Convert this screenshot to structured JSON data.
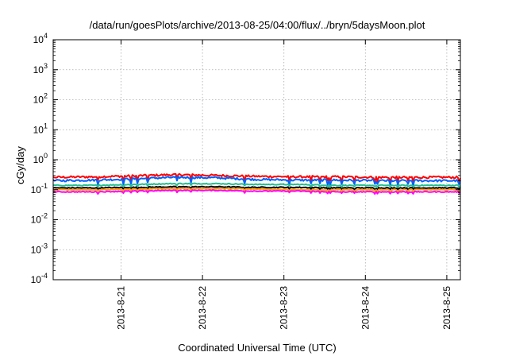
{
  "chart_data": {
    "type": "line",
    "title": "/data/run/goesPlots/archive/2013-08-25/04:00/flux/../bryn/5daysMoon.plot",
    "xlabel": "Coordinated Universal Time (UTC)",
    "ylabel": "cGy/day",
    "yscale": "log",
    "ylim": [
      0.0001,
      10000
    ],
    "yticks": [
      {
        "base": "10",
        "exp": "-4"
      },
      {
        "base": "10",
        "exp": "-3"
      },
      {
        "base": "10",
        "exp": "-2"
      },
      {
        "base": "10",
        "exp": "-1"
      },
      {
        "base": "10",
        "exp": "0"
      },
      {
        "base": "10",
        "exp": "1"
      },
      {
        "base": "10",
        "exp": "2"
      },
      {
        "base": "10",
        "exp": "3"
      },
      {
        "base": "10",
        "exp": "4"
      }
    ],
    "xlim": [
      "2013-08-20T04:00",
      "2013-08-25T04:00"
    ],
    "xticks": [
      {
        "label": "2013-8-21",
        "value": "2013-08-21T00:00"
      },
      {
        "label": "2013-8-22",
        "value": "2013-08-22T00:00"
      },
      {
        "label": "2013-8-23",
        "value": "2013-08-23T00:00"
      },
      {
        "label": "2013-8-24",
        "value": "2013-08-24T00:00"
      },
      {
        "label": "2013-8-25",
        "value": "2013-08-25T00:00"
      }
    ],
    "grid": true,
    "x": [
      "2013-08-20T04:00",
      "2013-08-20T16:00",
      "2013-08-21T04:00",
      "2013-08-21T16:00",
      "2013-08-22T04:00",
      "2013-08-22T16:00",
      "2013-08-23T04:00",
      "2013-08-23T16:00",
      "2013-08-24T04:00",
      "2013-08-24T16:00",
      "2013-08-25T04:00"
    ],
    "series": [
      {
        "color": "#ff0000",
        "values": [
          0.26,
          0.27,
          0.29,
          0.32,
          0.3,
          0.28,
          0.27,
          0.27,
          0.26,
          0.26,
          0.26
        ]
      },
      {
        "color": "#0060ff",
        "values": [
          0.2,
          0.21,
          0.23,
          0.26,
          0.25,
          0.22,
          0.21,
          0.21,
          0.2,
          0.2,
          0.2
        ]
      },
      {
        "color": "#20c090",
        "values": [
          0.14,
          0.14,
          0.15,
          0.16,
          0.16,
          0.15,
          0.15,
          0.14,
          0.14,
          0.14,
          0.14
        ]
      },
      {
        "color": "#000000",
        "values": [
          0.115,
          0.115,
          0.12,
          0.125,
          0.125,
          0.12,
          0.12,
          0.115,
          0.115,
          0.115,
          0.115
        ]
      },
      {
        "color": "#ffa000",
        "values": [
          0.1,
          0.1,
          0.105,
          0.11,
          0.11,
          0.105,
          0.1,
          0.1,
          0.1,
          0.1,
          0.1
        ]
      },
      {
        "color": "#ff00ff",
        "values": [
          0.085,
          0.085,
          0.09,
          0.095,
          0.095,
          0.09,
          0.09,
          0.085,
          0.085,
          0.085,
          0.085
        ]
      }
    ]
  }
}
